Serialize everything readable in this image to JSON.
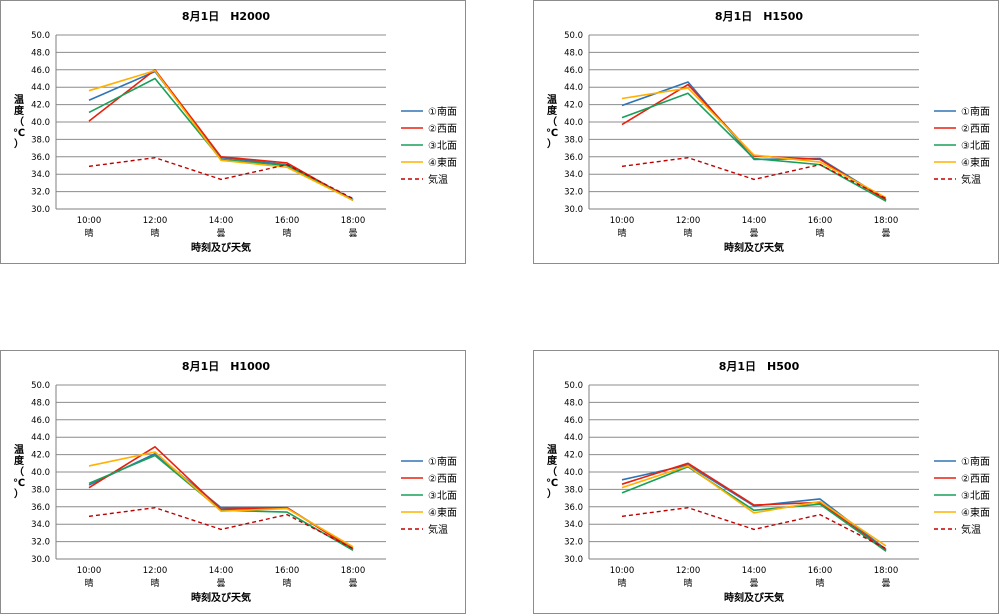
{
  "chart_data": [
    {
      "type": "line",
      "title": "8月1日　H2000",
      "xlabel": "時刻及び天気",
      "ylabel": "温度（℃）",
      "ylim": [
        30.0,
        50.0
      ],
      "y_ticks": [
        "30.0",
        "32.0",
        "34.0",
        "36.0",
        "38.0",
        "40.0",
        "42.0",
        "44.0",
        "46.0",
        "48.0",
        "50.0"
      ],
      "categories": [
        "10:00",
        "12:00",
        "14:00",
        "16:00",
        "18:00"
      ],
      "weather": [
        "晴",
        "晴",
        "曇",
        "晴",
        "曇"
      ],
      "grid": true,
      "legend": "right",
      "series": [
        {
          "name": "①南面",
          "color": "#2e75b6",
          "dash": false,
          "values": [
            42.5,
            45.8,
            35.9,
            35.1,
            31.1
          ]
        },
        {
          "name": "②西面",
          "color": "#e8200e",
          "dash": false,
          "values": [
            40.1,
            46.0,
            36.0,
            35.3,
            31.0
          ]
        },
        {
          "name": "③北面",
          "color": "#18a058",
          "dash": false,
          "values": [
            41.1,
            45.0,
            35.7,
            35.0,
            31.0
          ]
        },
        {
          "name": "④東面",
          "color": "#ffb000",
          "dash": false,
          "values": [
            43.6,
            45.9,
            35.6,
            34.8,
            31.0
          ]
        },
        {
          "name": "気温",
          "color": "#c00000",
          "dash": true,
          "values": [
            34.9,
            35.9,
            33.4,
            35.1,
            31.2
          ]
        }
      ]
    },
    {
      "type": "line",
      "title": "8月1日　H1500",
      "xlabel": "時刻及び天気",
      "ylabel": "温度（℃）",
      "ylim": [
        30.0,
        50.0
      ],
      "y_ticks": [
        "30.0",
        "32.0",
        "34.0",
        "36.0",
        "38.0",
        "40.0",
        "42.0",
        "44.0",
        "46.0",
        "48.0",
        "50.0"
      ],
      "categories": [
        "10:00",
        "12:00",
        "14:00",
        "16:00",
        "18:00"
      ],
      "weather": [
        "晴",
        "晴",
        "曇",
        "晴",
        "曇"
      ],
      "grid": true,
      "legend": "right",
      "series": [
        {
          "name": "①南面",
          "color": "#2e75b6",
          "dash": false,
          "values": [
            41.9,
            44.6,
            35.7,
            35.8,
            31.1
          ]
        },
        {
          "name": "②西面",
          "color": "#e8200e",
          "dash": false,
          "values": [
            39.7,
            44.3,
            36.1,
            35.7,
            31.0
          ]
        },
        {
          "name": "③北面",
          "color": "#18a058",
          "dash": false,
          "values": [
            40.5,
            43.3,
            35.8,
            35.1,
            30.9
          ]
        },
        {
          "name": "④東面",
          "color": "#ffb000",
          "dash": false,
          "values": [
            42.7,
            43.9,
            36.2,
            35.4,
            31.3
          ]
        },
        {
          "name": "気温",
          "color": "#c00000",
          "dash": true,
          "values": [
            34.9,
            35.9,
            33.4,
            35.1,
            31.2
          ]
        }
      ]
    },
    {
      "type": "line",
      "title": "8月1日　H1000",
      "xlabel": "時刻及び天気",
      "ylabel": "温度（℃）",
      "ylim": [
        30.0,
        50.0
      ],
      "y_ticks": [
        "30.0",
        "32.0",
        "34.0",
        "36.0",
        "38.0",
        "40.0",
        "42.0",
        "44.0",
        "46.0",
        "48.0",
        "50.0"
      ],
      "categories": [
        "10:00",
        "12:00",
        "14:00",
        "16:00",
        "18:00"
      ],
      "weather": [
        "晴",
        "晴",
        "曇",
        "晴",
        "曇"
      ],
      "grid": true,
      "legend": "right",
      "series": [
        {
          "name": "①南面",
          "color": "#2e75b6",
          "dash": false,
          "values": [
            38.5,
            42.1,
            35.9,
            35.9,
            31.2
          ]
        },
        {
          "name": "②西面",
          "color": "#e8200e",
          "dash": false,
          "values": [
            38.2,
            42.9,
            35.7,
            35.9,
            31.1
          ]
        },
        {
          "name": "③北面",
          "color": "#18a058",
          "dash": false,
          "values": [
            38.7,
            41.9,
            35.6,
            35.4,
            31.0
          ]
        },
        {
          "name": "④東面",
          "color": "#ffb000",
          "dash": false,
          "values": [
            40.7,
            42.3,
            35.5,
            35.8,
            31.4
          ]
        },
        {
          "name": "気温",
          "color": "#c00000",
          "dash": true,
          "values": [
            34.9,
            35.9,
            33.4,
            35.1,
            31.2
          ]
        }
      ]
    },
    {
      "type": "line",
      "title": "8月1日　H500",
      "xlabel": "時刻及び天気",
      "ylabel": "温度（℃）",
      "ylim": [
        30.0,
        50.0
      ],
      "y_ticks": [
        "30.0",
        "32.0",
        "34.0",
        "36.0",
        "38.0",
        "40.0",
        "42.0",
        "44.0",
        "46.0",
        "48.0",
        "50.0"
      ],
      "categories": [
        "10:00",
        "12:00",
        "14:00",
        "16:00",
        "18:00"
      ],
      "weather": [
        "晴",
        "晴",
        "曇",
        "晴",
        "曇"
      ],
      "grid": true,
      "legend": "right",
      "series": [
        {
          "name": "①南面",
          "color": "#2e75b6",
          "dash": false,
          "values": [
            39.1,
            40.8,
            36.1,
            36.9,
            31.1
          ]
        },
        {
          "name": "②西面",
          "color": "#e8200e",
          "dash": false,
          "values": [
            38.6,
            41.0,
            36.2,
            36.5,
            31.0
          ]
        },
        {
          "name": "③北面",
          "color": "#18a058",
          "dash": false,
          "values": [
            37.6,
            40.6,
            35.6,
            36.3,
            30.9
          ]
        },
        {
          "name": "④東面",
          "color": "#ffb000",
          "dash": false,
          "values": [
            38.2,
            40.7,
            35.3,
            36.6,
            31.5
          ]
        },
        {
          "name": "気温",
          "color": "#c00000",
          "dash": true,
          "values": [
            34.9,
            35.9,
            33.4,
            35.1,
            31.2
          ]
        }
      ]
    }
  ]
}
